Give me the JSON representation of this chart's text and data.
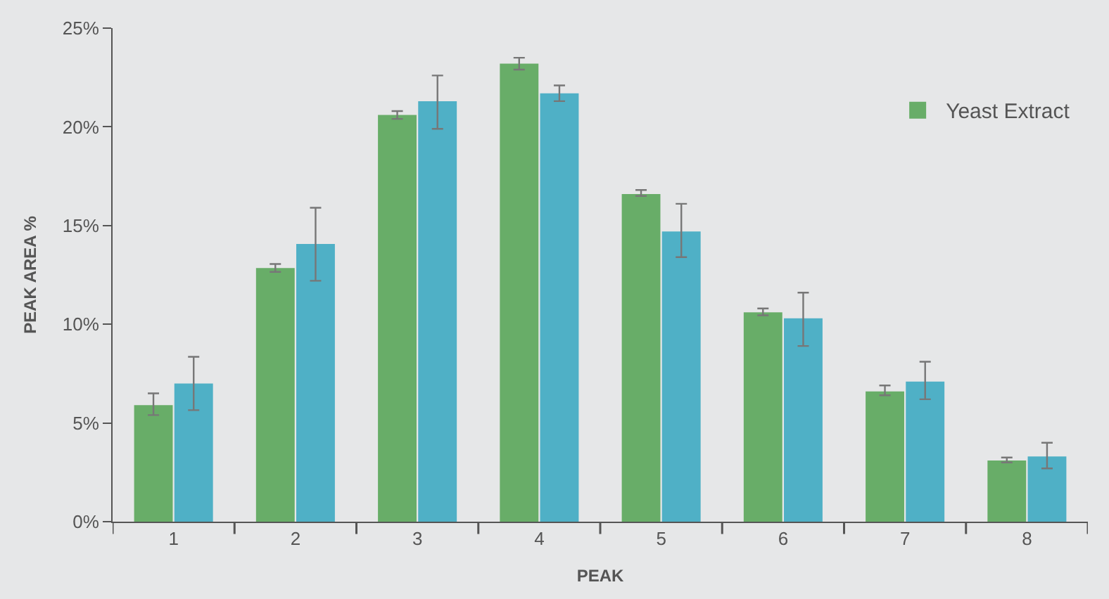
{
  "chart_data": {
    "type": "bar",
    "xlabel": "PEAK",
    "ylabel": "PEAK AREA %",
    "categories": [
      "1",
      "2",
      "3",
      "4",
      "5",
      "6",
      "7",
      "8"
    ],
    "series": [
      {
        "name": "Yeast Extract",
        "color": "#68ad68",
        "values": [
          5.9,
          12.85,
          20.6,
          23.2,
          16.6,
          10.6,
          6.6,
          3.1
        ],
        "errors": [
          [
            5.4,
            6.5
          ],
          [
            12.65,
            13.05
          ],
          [
            20.4,
            20.8
          ],
          [
            22.9,
            23.5
          ],
          [
            16.5,
            16.8
          ],
          [
            10.45,
            10.8
          ],
          [
            6.4,
            6.9
          ],
          [
            3.0,
            3.25
          ]
        ]
      },
      {
        "color": "#4fb0c6",
        "values": [
          7.0,
          14.07,
          21.3,
          21.7,
          14.7,
          10.3,
          7.1,
          3.3
        ],
        "errors": [
          [
            5.65,
            8.35
          ],
          [
            12.2,
            15.9
          ],
          [
            19.9,
            22.6
          ],
          [
            21.3,
            22.1
          ],
          [
            13.4,
            16.1
          ],
          [
            8.9,
            11.6
          ],
          [
            6.2,
            8.1
          ],
          [
            2.7,
            4.0
          ]
        ]
      }
    ],
    "ylim": [
      0,
      25
    ],
    "yticks": [
      {
        "value": 0,
        "label": "0%"
      },
      {
        "value": 5,
        "label": "5%"
      },
      {
        "value": 10,
        "label": "10%"
      },
      {
        "value": 15,
        "label": "15%"
      },
      {
        "value": 20,
        "label": "20%"
      },
      {
        "value": 25,
        "label": "25%"
      }
    ],
    "grid": false,
    "legend": "top right"
  }
}
